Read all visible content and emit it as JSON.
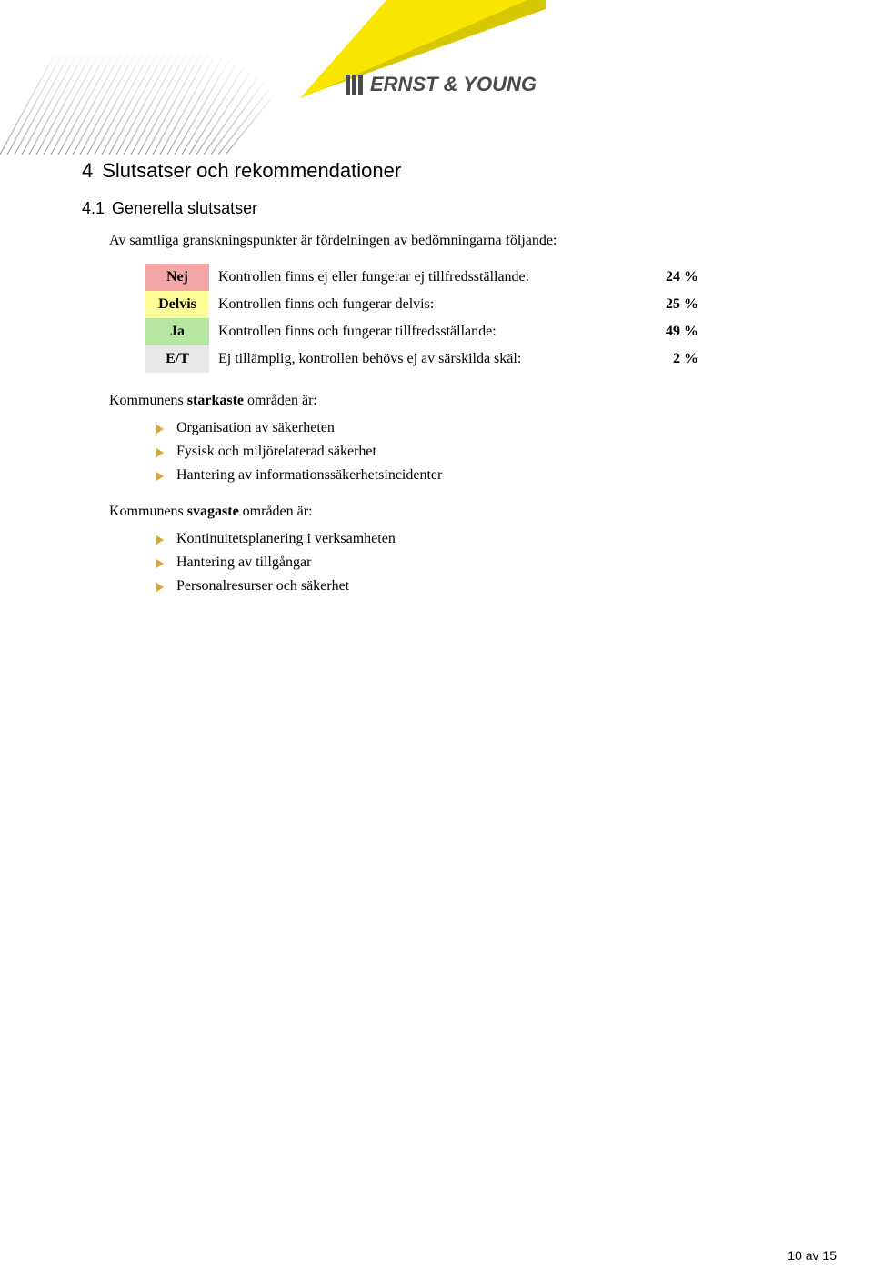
{
  "logo_text": "ERNST & YOUNG",
  "section": {
    "number": "4",
    "title": "Slutsatser och rekommendationer"
  },
  "subsection": {
    "number": "4.1",
    "title": "Generella slutsatser"
  },
  "intro": "Av samtliga granskningspunkter är fördelningen av bedömningarna följande:",
  "table": {
    "rows": [
      {
        "tag": "Nej",
        "tag_bg": "#f4a6a6",
        "desc": "Kontrollen finns ej eller fungerar ej tillfredsställande:",
        "pct": "24 %"
      },
      {
        "tag": "Delvis",
        "tag_bg": "#ffff99",
        "desc": "Kontrollen finns och fungerar delvis:",
        "pct": "25 %"
      },
      {
        "tag": "Ja",
        "tag_bg": "#b5e6a2",
        "desc": "Kontrollen finns och fungerar tillfredsställande:",
        "pct": "49 %"
      },
      {
        "tag": "E/T",
        "tag_bg": "#e8e8e8",
        "desc": "Ej tillämplig, kontrollen behövs ej av särskilda skäl:",
        "pct": "2 %"
      }
    ]
  },
  "strong_areas": {
    "intro_pre": "Kommunens ",
    "intro_bold": "starkaste",
    "intro_post": " områden är:",
    "bullet_color": "#d4a93a",
    "items": [
      "Organisation av säkerheten",
      "Fysisk och miljörelaterad säkerhet",
      "Hantering av informationssäkerhetsincidenter"
    ]
  },
  "weak_areas": {
    "intro_pre": "Kommunens ",
    "intro_bold": "svagaste",
    "intro_post": " områden är:",
    "bullet_color": "#d4a93a",
    "items": [
      "Kontinuitetsplanering i verksamheten",
      "Hantering av tillgångar",
      "Personalresurser och säkerhet"
    ]
  },
  "footer": "10 av 15"
}
